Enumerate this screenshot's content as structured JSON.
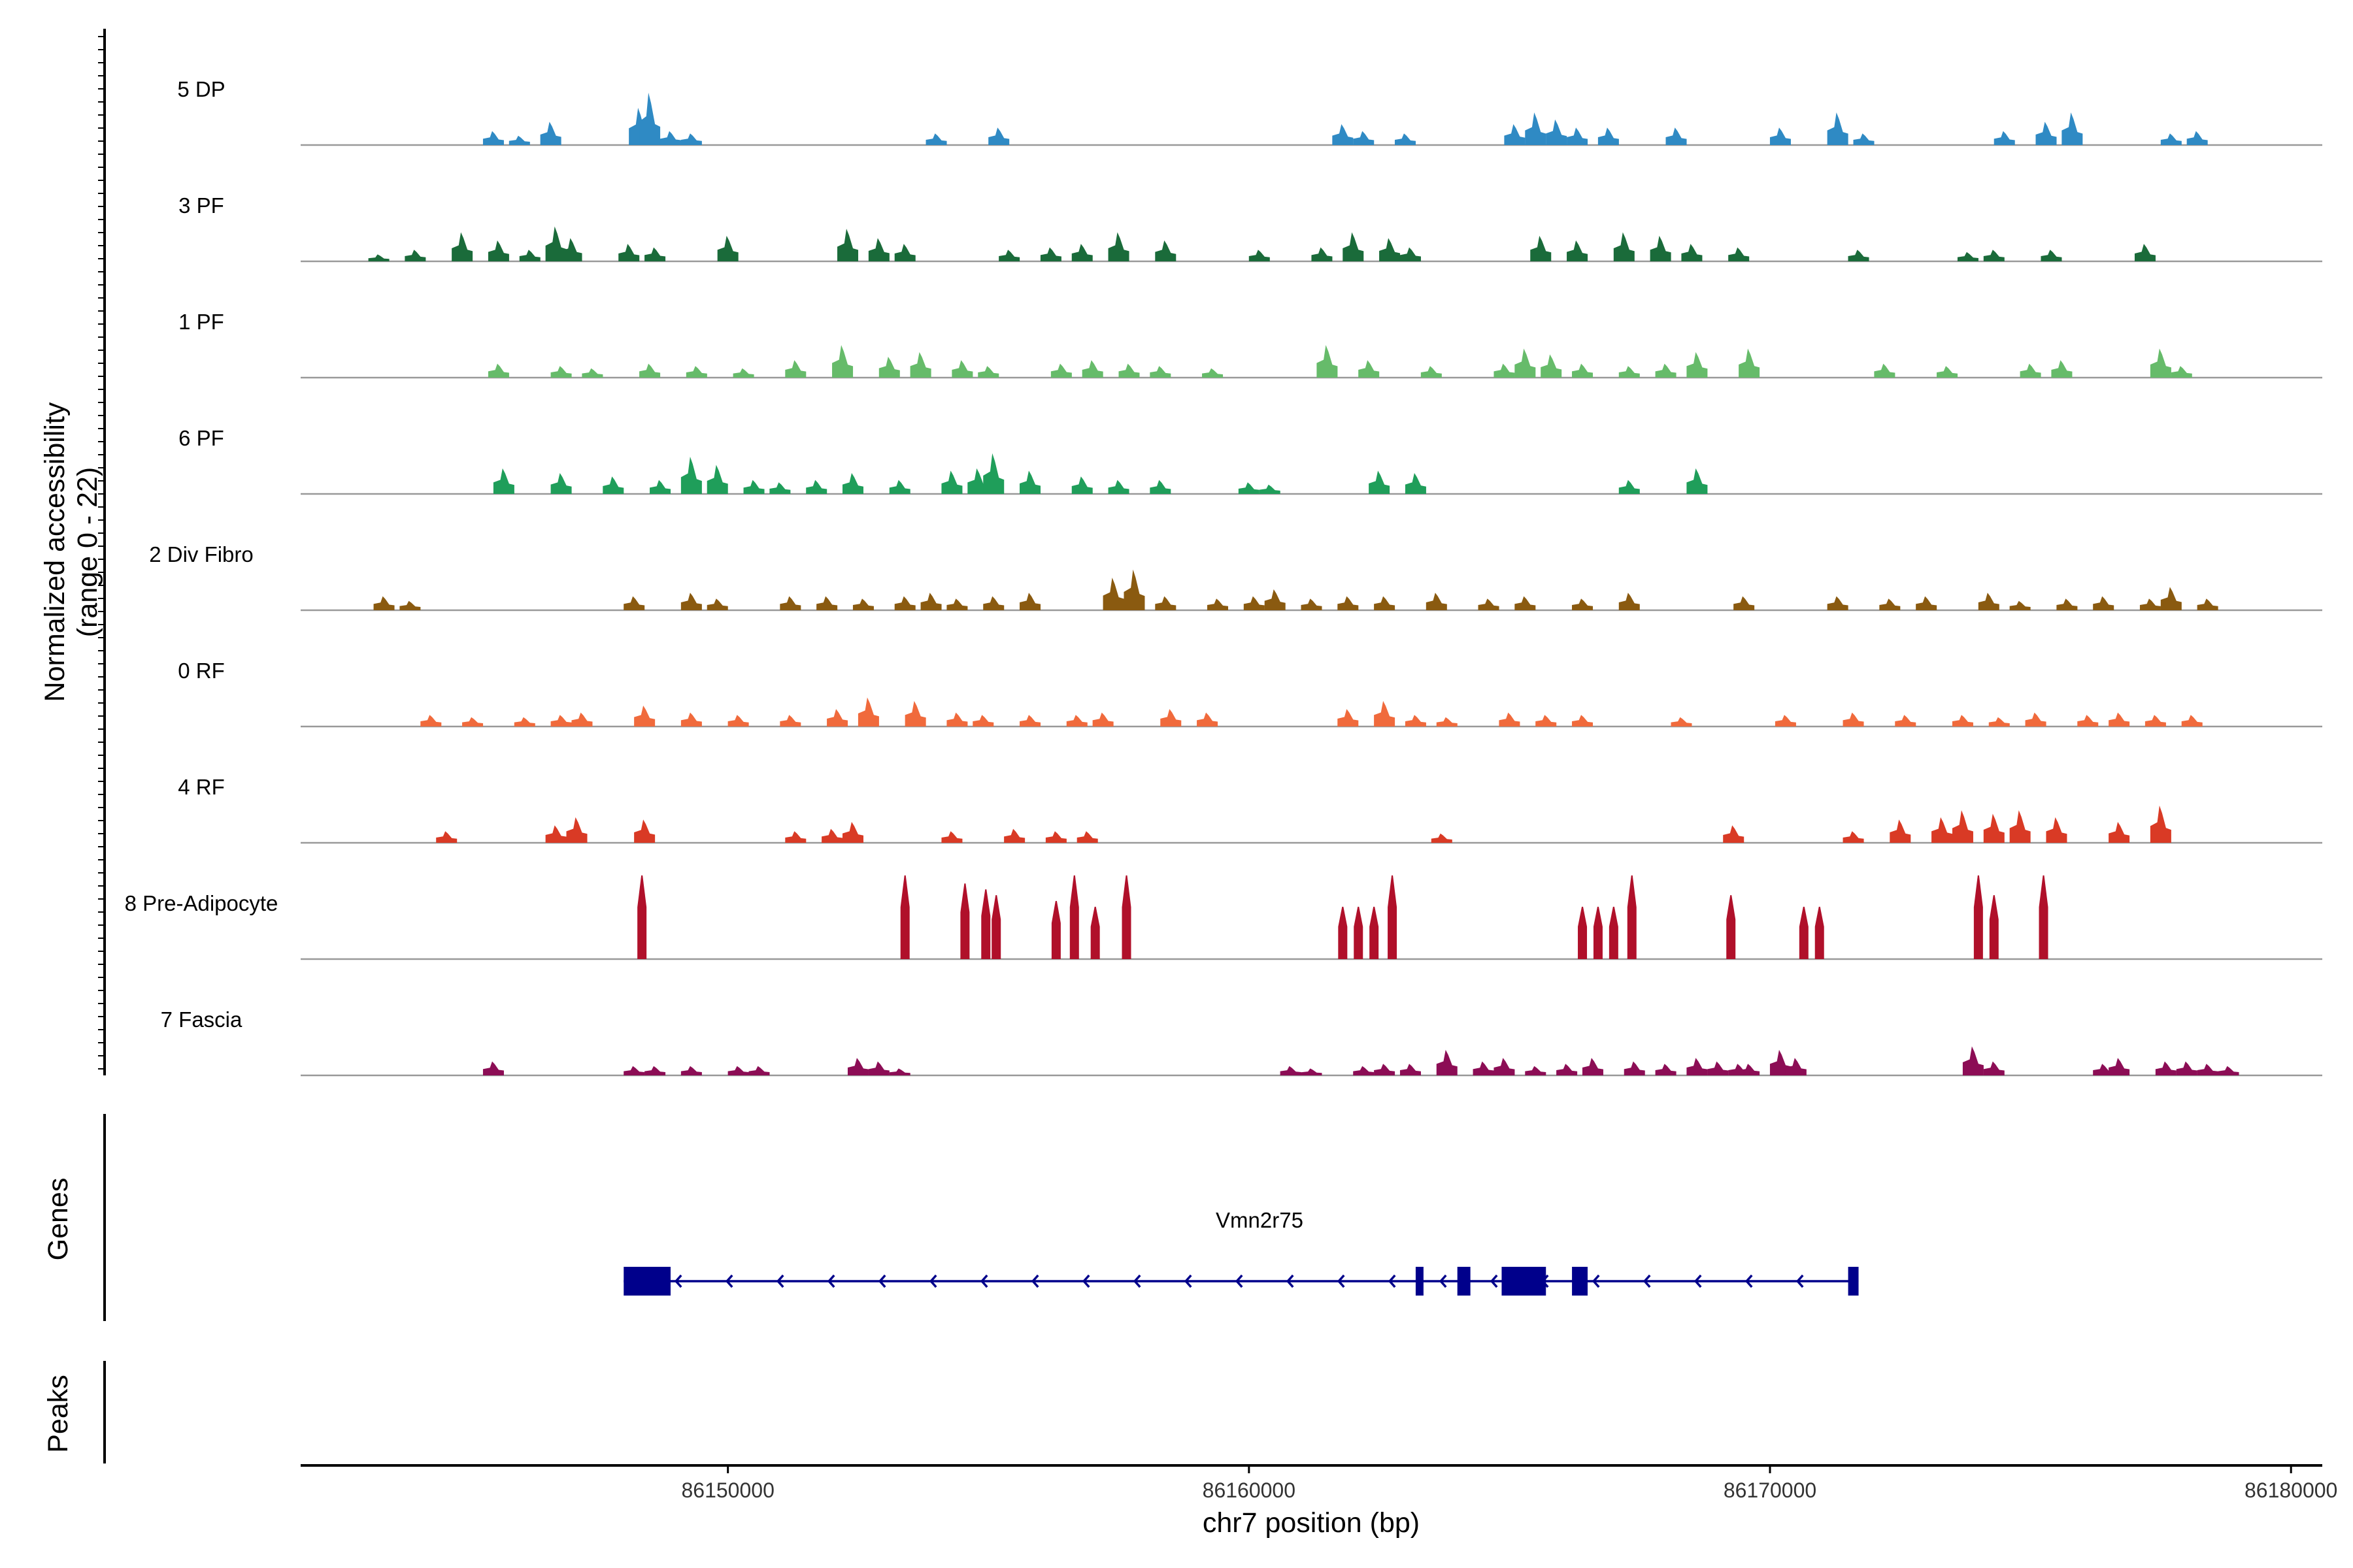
{
  "chart_data": {
    "type": "area",
    "title": "",
    "xlabel": "chr7 position (bp)",
    "ylabel": "Normalized accessibility\n(range 0 - 22)",
    "ylim": [
      0,
      22
    ],
    "xlim": [
      86141800,
      86180600
    ],
    "x_ticks": [
      86150000,
      86160000,
      86170000,
      86180000
    ],
    "x_tick_labels": [
      "86150000",
      "86160000",
      "86170000",
      "86180000"
    ],
    "tracks": [
      {
        "name": "5 DP",
        "color": "#2f8ac4",
        "peaks": [
          [
            86145500,
            0.12
          ],
          [
            86146000,
            0.08
          ],
          [
            86146600,
            0.2
          ],
          [
            86148300,
            0.32
          ],
          [
            86148500,
            0.45
          ],
          [
            86148900,
            0.12
          ],
          [
            86149300,
            0.1
          ],
          [
            86154000,
            0.1
          ],
          [
            86155200,
            0.15
          ],
          [
            86161800,
            0.18
          ],
          [
            86162200,
            0.12
          ],
          [
            86163000,
            0.1
          ],
          [
            86165100,
            0.18
          ],
          [
            86165500,
            0.28
          ],
          [
            86165900,
            0.22
          ],
          [
            86166300,
            0.15
          ],
          [
            86166900,
            0.15
          ],
          [
            86168200,
            0.15
          ],
          [
            86170200,
            0.15
          ],
          [
            86171300,
            0.28
          ],
          [
            86171800,
            0.1
          ],
          [
            86174500,
            0.12
          ],
          [
            86175300,
            0.2
          ],
          [
            86175800,
            0.28
          ],
          [
            86177700,
            0.1
          ],
          [
            86178200,
            0.12
          ]
        ]
      },
      {
        "name": "3 PF",
        "color": "#1a6b3a",
        "peaks": [
          [
            86143300,
            0.06
          ],
          [
            86144000,
            0.1
          ],
          [
            86144900,
            0.25
          ],
          [
            86145600,
            0.18
          ],
          [
            86146200,
            0.1
          ],
          [
            86146700,
            0.3
          ],
          [
            86147000,
            0.2
          ],
          [
            86148100,
            0.15
          ],
          [
            86148600,
            0.12
          ],
          [
            86150000,
            0.22
          ],
          [
            86152300,
            0.28
          ],
          [
            86152900,
            0.2
          ],
          [
            86153400,
            0.15
          ],
          [
            86155400,
            0.1
          ],
          [
            86156200,
            0.12
          ],
          [
            86156800,
            0.15
          ],
          [
            86157500,
            0.25
          ],
          [
            86158400,
            0.18
          ],
          [
            86160200,
            0.1
          ],
          [
            86161400,
            0.12
          ],
          [
            86162000,
            0.25
          ],
          [
            86162700,
            0.2
          ],
          [
            86163100,
            0.12
          ],
          [
            86165600,
            0.22
          ],
          [
            86166300,
            0.18
          ],
          [
            86167200,
            0.25
          ],
          [
            86167900,
            0.22
          ],
          [
            86168500,
            0.15
          ],
          [
            86169400,
            0.12
          ],
          [
            86171700,
            0.1
          ],
          [
            86173800,
            0.08
          ],
          [
            86174300,
            0.1
          ],
          [
            86175400,
            0.1
          ],
          [
            86177200,
            0.15
          ]
        ]
      },
      {
        "name": "1 PF",
        "color": "#66bb6a",
        "peaks": [
          [
            86145600,
            0.12
          ],
          [
            86146800,
            0.1
          ],
          [
            86147400,
            0.08
          ],
          [
            86148500,
            0.12
          ],
          [
            86149400,
            0.1
          ],
          [
            86150300,
            0.08
          ],
          [
            86151300,
            0.15
          ],
          [
            86152200,
            0.28
          ],
          [
            86153100,
            0.18
          ],
          [
            86153700,
            0.22
          ],
          [
            86154500,
            0.15
          ],
          [
            86155000,
            0.1
          ],
          [
            86156400,
            0.12
          ],
          [
            86157000,
            0.15
          ],
          [
            86157700,
            0.12
          ],
          [
            86158300,
            0.1
          ],
          [
            86159300,
            0.08
          ],
          [
            86161500,
            0.28
          ],
          [
            86162300,
            0.15
          ],
          [
            86163500,
            0.1
          ],
          [
            86164900,
            0.12
          ],
          [
            86165300,
            0.25
          ],
          [
            86165800,
            0.2
          ],
          [
            86166400,
            0.12
          ],
          [
            86167300,
            0.1
          ],
          [
            86168000,
            0.12
          ],
          [
            86168600,
            0.22
          ],
          [
            86169600,
            0.25
          ],
          [
            86172200,
            0.12
          ],
          [
            86173400,
            0.1
          ],
          [
            86175000,
            0.12
          ],
          [
            86175600,
            0.15
          ],
          [
            86177500,
            0.25
          ],
          [
            86177900,
            0.1
          ]
        ]
      },
      {
        "name": "6 PF",
        "color": "#1f9e5a",
        "peaks": [
          [
            86145700,
            0.22
          ],
          [
            86146800,
            0.18
          ],
          [
            86147800,
            0.15
          ],
          [
            86148700,
            0.12
          ],
          [
            86149300,
            0.32
          ],
          [
            86149800,
            0.25
          ],
          [
            86150500,
            0.12
          ],
          [
            86151000,
            0.1
          ],
          [
            86151700,
            0.12
          ],
          [
            86152400,
            0.18
          ],
          [
            86153300,
            0.12
          ],
          [
            86154300,
            0.2
          ],
          [
            86154800,
            0.22
          ],
          [
            86155100,
            0.35
          ],
          [
            86155800,
            0.2
          ],
          [
            86156800,
            0.15
          ],
          [
            86157500,
            0.12
          ],
          [
            86158300,
            0.12
          ],
          [
            86160000,
            0.1
          ],
          [
            86160400,
            0.08
          ],
          [
            86162500,
            0.2
          ],
          [
            86163200,
            0.18
          ],
          [
            86167300,
            0.12
          ],
          [
            86168600,
            0.22
          ]
        ]
      },
      {
        "name": "2 Div Fibro",
        "color": "#8a5a10",
        "peaks": [
          [
            86143400,
            0.12
          ],
          [
            86143900,
            0.08
          ],
          [
            86148200,
            0.12
          ],
          [
            86149300,
            0.15
          ],
          [
            86149800,
            0.1
          ],
          [
            86151200,
            0.12
          ],
          [
            86151900,
            0.12
          ],
          [
            86152600,
            0.1
          ],
          [
            86153400,
            0.12
          ],
          [
            86153900,
            0.15
          ],
          [
            86154400,
            0.1
          ],
          [
            86155100,
            0.12
          ],
          [
            86155800,
            0.15
          ],
          [
            86157400,
            0.28
          ],
          [
            86157800,
            0.35
          ],
          [
            86158400,
            0.12
          ],
          [
            86159400,
            0.1
          ],
          [
            86160100,
            0.12
          ],
          [
            86160500,
            0.18
          ],
          [
            86161200,
            0.1
          ],
          [
            86161900,
            0.12
          ],
          [
            86162600,
            0.12
          ],
          [
            86163600,
            0.15
          ],
          [
            86164600,
            0.1
          ],
          [
            86165300,
            0.12
          ],
          [
            86166400,
            0.1
          ],
          [
            86167300,
            0.15
          ],
          [
            86169500,
            0.12
          ],
          [
            86171300,
            0.12
          ],
          [
            86172300,
            0.1
          ],
          [
            86173000,
            0.12
          ],
          [
            86174200,
            0.15
          ],
          [
            86174800,
            0.08
          ],
          [
            86175700,
            0.1
          ],
          [
            86176400,
            0.12
          ],
          [
            86177300,
            0.1
          ],
          [
            86177700,
            0.2
          ],
          [
            86178400,
            0.1
          ]
        ]
      },
      {
        "name": "0 RF",
        "color": "#f06a3c",
        "peaks": [
          [
            86144300,
            0.1
          ],
          [
            86145100,
            0.08
          ],
          [
            86146100,
            0.08
          ],
          [
            86146800,
            0.1
          ],
          [
            86147200,
            0.12
          ],
          [
            86148400,
            0.18
          ],
          [
            86149300,
            0.12
          ],
          [
            86150200,
            0.1
          ],
          [
            86151200,
            0.1
          ],
          [
            86152100,
            0.15
          ],
          [
            86152700,
            0.25
          ],
          [
            86153600,
            0.22
          ],
          [
            86154400,
            0.12
          ],
          [
            86154900,
            0.1
          ],
          [
            86155800,
            0.1
          ],
          [
            86156700,
            0.1
          ],
          [
            86157200,
            0.12
          ],
          [
            86158500,
            0.15
          ],
          [
            86159200,
            0.12
          ],
          [
            86161900,
            0.15
          ],
          [
            86162600,
            0.22
          ],
          [
            86163200,
            0.1
          ],
          [
            86163800,
            0.08
          ],
          [
            86165000,
            0.12
          ],
          [
            86165700,
            0.1
          ],
          [
            86166400,
            0.1
          ],
          [
            86168300,
            0.08
          ],
          [
            86170300,
            0.1
          ],
          [
            86171600,
            0.12
          ],
          [
            86172600,
            0.1
          ],
          [
            86173700,
            0.1
          ],
          [
            86174400,
            0.08
          ],
          [
            86175100,
            0.12
          ],
          [
            86176100,
            0.1
          ],
          [
            86176700,
            0.12
          ],
          [
            86177400,
            0.1
          ],
          [
            86178100,
            0.1
          ]
        ]
      },
      {
        "name": "4 RF",
        "color": "#d93a25",
        "peaks": [
          [
            86144600,
            0.1
          ],
          [
            86146700,
            0.15
          ],
          [
            86147100,
            0.22
          ],
          [
            86148400,
            0.2
          ],
          [
            86151300,
            0.1
          ],
          [
            86152000,
            0.12
          ],
          [
            86152400,
            0.18
          ],
          [
            86154300,
            0.1
          ],
          [
            86155500,
            0.12
          ],
          [
            86156300,
            0.1
          ],
          [
            86156900,
            0.1
          ],
          [
            86163700,
            0.08
          ],
          [
            86169300,
            0.15
          ],
          [
            86171600,
            0.1
          ],
          [
            86172500,
            0.2
          ],
          [
            86173300,
            0.22
          ],
          [
            86173700,
            0.28
          ],
          [
            86174300,
            0.25
          ],
          [
            86174800,
            0.28
          ],
          [
            86175500,
            0.22
          ],
          [
            86176700,
            0.18
          ],
          [
            86177500,
            0.32
          ]
        ]
      },
      {
        "name": "8 Pre-Adipocyte",
        "color": "#b0102a",
        "peaks": [
          [
            86148350,
            0.72
          ],
          [
            86153400,
            0.72
          ],
          [
            86154550,
            0.65
          ],
          [
            86154950,
            0.6
          ],
          [
            86156300,
            0.5
          ],
          [
            86156650,
            0.72
          ],
          [
            86157050,
            0.45
          ],
          [
            86157650,
            0.72
          ],
          [
            86161800,
            0.45
          ],
          [
            86162100,
            0.45
          ],
          [
            86162400,
            0.45
          ],
          [
            86162750,
            0.72
          ],
          [
            86166700,
            0.45
          ],
          [
            86167000,
            0.45
          ],
          [
            86167350,
            0.72
          ],
          [
            86169250,
            0.55
          ],
          [
            86170650,
            0.45
          ],
          [
            86170950,
            0.45
          ],
          [
            86174000,
            0.72
          ],
          [
            86175250,
            0.72
          ],
          [
            86155150,
            0.55
          ],
          [
            86166400,
            0.45
          ],
          [
            86174300,
            0.55
          ]
        ]
      },
      {
        "name": "7 Fascia",
        "color": "#8c0d55",
        "peaks": [
          [
            86145500,
            0.12
          ],
          [
            86148200,
            0.08
          ],
          [
            86148600,
            0.08
          ],
          [
            86149300,
            0.08
          ],
          [
            86150200,
            0.08
          ],
          [
            86150600,
            0.08
          ],
          [
            86152500,
            0.15
          ],
          [
            86152900,
            0.12
          ],
          [
            86153300,
            0.06
          ],
          [
            86160800,
            0.08
          ],
          [
            86161200,
            0.06
          ],
          [
            86162200,
            0.08
          ],
          [
            86162600,
            0.1
          ],
          [
            86163100,
            0.1
          ],
          [
            86163800,
            0.22
          ],
          [
            86164500,
            0.12
          ],
          [
            86164900,
            0.15
          ],
          [
            86165500,
            0.08
          ],
          [
            86166100,
            0.1
          ],
          [
            86166600,
            0.15
          ],
          [
            86167400,
            0.12
          ],
          [
            86168000,
            0.1
          ],
          [
            86168600,
            0.15
          ],
          [
            86169000,
            0.12
          ],
          [
            86169600,
            0.1
          ],
          [
            86170200,
            0.22
          ],
          [
            86170500,
            0.15
          ],
          [
            86173900,
            0.25
          ],
          [
            86174300,
            0.12
          ],
          [
            86176700,
            0.15
          ],
          [
            86177600,
            0.12
          ],
          [
            86178000,
            0.12
          ],
          [
            86178400,
            0.1
          ],
          [
            86178800,
            0.08
          ],
          [
            86169400,
            0.1
          ],
          [
            86176400,
            0.1
          ]
        ]
      }
    ],
    "genes": [
      {
        "name": "Vmn2r75",
        "strand": "-",
        "start": 86148000,
        "end": 86171700,
        "exons": [
          [
            86148000,
            86148900
          ],
          [
            86163200,
            86163350
          ],
          [
            86164000,
            86164250
          ],
          [
            86164850,
            86165700
          ],
          [
            86166200,
            86166500
          ],
          [
            86171500,
            86171700
          ]
        ]
      }
    ],
    "panel_labels": {
      "genes": "Genes",
      "peaks": "Peaks"
    },
    "peaks_track": []
  }
}
